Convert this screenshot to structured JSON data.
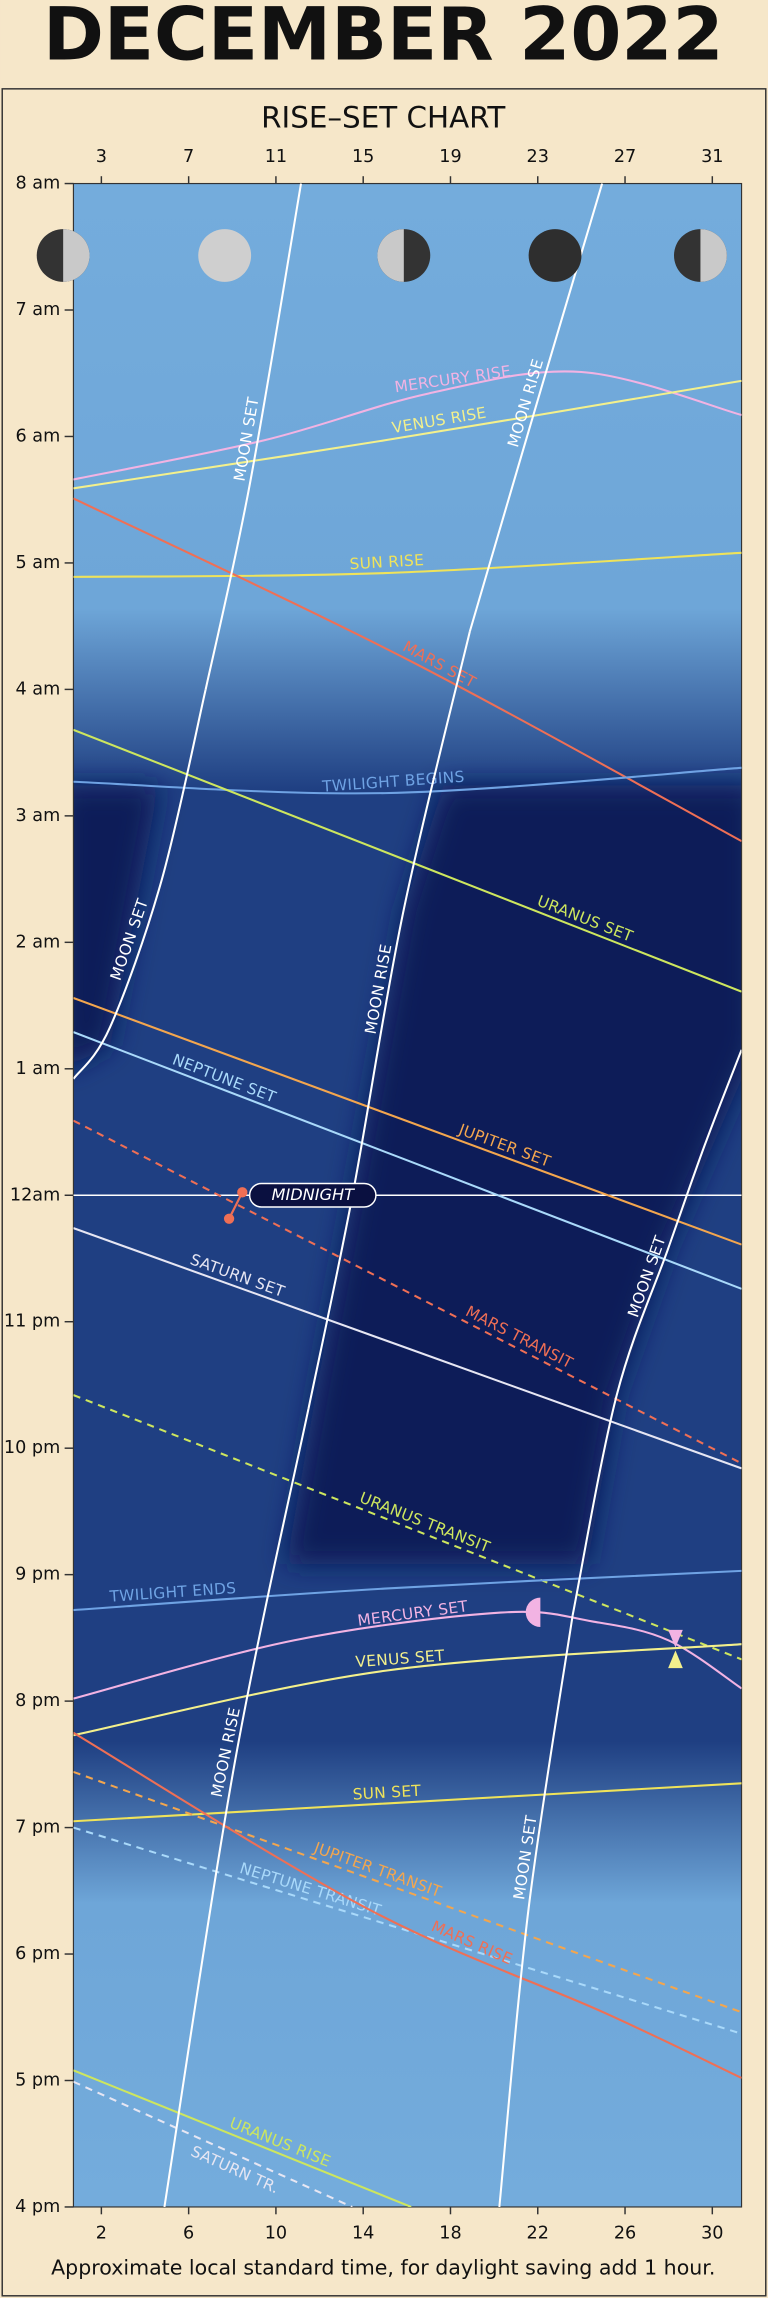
{
  "chart_data": {
    "type": "line",
    "title": "DECEMBER 2022",
    "subtitle": "RISE–SET CHART",
    "note": "Approximate local standard time, for daylight saving add 1 hour.",
    "xlim": [
      0.72,
      31.34
    ],
    "xticks": [
      2,
      6,
      10,
      14,
      18,
      22,
      26,
      30
    ],
    "x2lim": [
      1.72,
      32.34
    ],
    "x2ticks": [
      3,
      7,
      11,
      15,
      19,
      23,
      27,
      31
    ],
    "ylim": [
      16,
      32
    ],
    "yticks": [
      {
        "value": 16,
        "label": "4 pm"
      },
      {
        "value": 17,
        "label": "5 pm"
      },
      {
        "value": 18,
        "label": "6 pm"
      },
      {
        "value": 19,
        "label": "7 pm"
      },
      {
        "value": 20,
        "label": "8 pm"
      },
      {
        "value": 21,
        "label": "9 pm"
      },
      {
        "value": 22,
        "label": "10 pm"
      },
      {
        "value": 23,
        "label": "11 pm"
      },
      {
        "value": 24,
        "label": "12am"
      },
      {
        "value": 25,
        "label": "1 am"
      },
      {
        "value": 26,
        "label": "2 am"
      },
      {
        "value": 27,
        "label": "3 am"
      },
      {
        "value": 28,
        "label": "4 am"
      },
      {
        "value": 29,
        "label": "5 am"
      },
      {
        "value": 30,
        "label": "6 am"
      },
      {
        "value": 31,
        "label": "7 am"
      },
      {
        "value": 32,
        "label": "8 am"
      }
    ],
    "midnight": {
      "value": 24,
      "label": "MIDNIGHT"
    },
    "series": [
      {
        "name": "MERCURY RISE",
        "color": "#f2b3e3",
        "dashed": false,
        "x": [
          0.72,
          9.47,
          17,
          24,
          31.34
        ],
        "values": [
          29.66,
          29.97,
          30.34,
          30.51,
          30.17
        ]
      },
      {
        "name": "VENUS RISE",
        "color": "#f3f08c",
        "dashed": false,
        "x": [
          0.72,
          15,
          31.34
        ],
        "values": [
          29.59,
          29.97,
          30.44
        ]
      },
      {
        "name": "SUN RISE",
        "color": "#efe35a",
        "dashed": false,
        "x": [
          0.72,
          15,
          31.34
        ],
        "values": [
          28.89,
          28.92,
          29.08
        ]
      },
      {
        "name": "MARS SET",
        "color": "#ef6f55",
        "dashed": false,
        "x": [
          0.72,
          16.1,
          31.34
        ],
        "values": [
          29.51,
          28.23,
          26.8
        ]
      },
      {
        "name": "TWILIGHT BEGINS",
        "color": "#6fa3e4",
        "dashed": false,
        "x": [
          0.72,
          15,
          31.34
        ],
        "values": [
          27.27,
          27.18,
          27.38
        ]
      },
      {
        "name": "URANUS SET",
        "color": "#cde65e",
        "dashed": false,
        "x": [
          0.72,
          31.34
        ],
        "values": [
          27.68,
          25.61
        ]
      },
      {
        "name": "NEPTUNE SET",
        "color": "#a9d9fa",
        "dashed": false,
        "x": [
          0.72,
          31.34
        ],
        "values": [
          25.29,
          23.26
        ]
      },
      {
        "name": "JUPITER SET",
        "color": "#f3a64e",
        "dashed": false,
        "x": [
          0.72,
          31.34
        ],
        "values": [
          25.56,
          23.61
        ]
      },
      {
        "name": "SATURN SET",
        "color": "#e6e6f3",
        "dashed": false,
        "x": [
          0.72,
          31.34
        ],
        "values": [
          23.74,
          21.84
        ]
      },
      {
        "name": "MARS TRANSIT",
        "color": "#ef6f55",
        "dashed": true,
        "x": [
          0.72,
          31.34
        ],
        "values": [
          24.59,
          21.88
        ]
      },
      {
        "name": "URANUS TRANSIT",
        "color": "#cde65e",
        "dashed": true,
        "x": [
          0.72,
          31.34
        ],
        "values": [
          22.42,
          20.33
        ]
      },
      {
        "name": "TWILIGHT ENDS",
        "color": "#6fa3e4",
        "dashed": false,
        "x": [
          0.72,
          15,
          31.34
        ],
        "values": [
          20.72,
          20.89,
          21.03
        ]
      },
      {
        "name": "MERCURY SET",
        "color": "#f2b3e3",
        "dashed": false,
        "x": [
          0.72,
          10.82,
          20.3,
          24.5,
          28,
          31.34
        ],
        "values": [
          20.02,
          20.48,
          20.7,
          20.63,
          20.48,
          20.1
        ]
      },
      {
        "name": "VENUS SET",
        "color": "#f3f08c",
        "dashed": false,
        "x": [
          0.72,
          15,
          31.34
        ],
        "values": [
          19.73,
          20.24,
          20.45
        ]
      },
      {
        "name": "SUN SET",
        "color": "#efe35a",
        "dashed": false,
        "x": [
          0.72,
          15,
          31.34
        ],
        "values": [
          19.05,
          19.19,
          19.35
        ]
      },
      {
        "name": "JUPITER TRANSIT",
        "color": "#f3a64e",
        "dashed": true,
        "x": [
          0.72,
          31.34
        ],
        "values": [
          19.44,
          17.54
        ]
      },
      {
        "name": "NEPTUNE TRANSIT",
        "color": "#a9d9fa",
        "dashed": true,
        "x": [
          0.72,
          31.34
        ],
        "values": [
          19.0,
          17.37
        ]
      },
      {
        "name": "MARS RISE",
        "color": "#ef6f55",
        "dashed": false,
        "x": [
          0.72,
          14.18,
          25,
          31.34
        ],
        "values": [
          19.75,
          18.36,
          17.54,
          17.02
        ]
      },
      {
        "name": "URANUS RISE",
        "color": "#cde65e",
        "dashed": false,
        "x": [
          0.72,
          16.2
        ],
        "values": [
          17.08,
          16.0
        ]
      },
      {
        "name": "SATURN TR.",
        "color": "#e6e6f3",
        "dashed": true,
        "x": [
          0.72,
          13.5
        ],
        "values": [
          16.99,
          16.0
        ]
      },
      {
        "name": "MOON SET",
        "color": "#ffffff",
        "dashed": false,
        "x": [
          11.15,
          8.8,
          6.78
        ],
        "values": [
          32,
          29.62,
          28.0
        ]
      },
      {
        "name": "MOON SET",
        "color": "#ffffff",
        "dashed": false,
        "x": [
          6.78,
          4.76,
          2.4,
          0.72
        ],
        "values": [
          28.0,
          26.49,
          25.33,
          24.92
        ]
      },
      {
        "name": "MOON RISE",
        "color": "#ffffff",
        "dashed": false,
        "x": [
          4.89,
          8.12,
          11.49
        ],
        "values": [
          16,
          19.52,
          22.31
        ]
      },
      {
        "name": "MOON RISE",
        "color": "#ffffff",
        "dashed": false,
        "x": [
          11.49,
          13.51,
          15.86,
          18.89
        ],
        "values": [
          22.31,
          24,
          26.26,
          28.46
        ]
      },
      {
        "name": "MOON RISE",
        "color": "#ffffff",
        "dashed": false,
        "x": [
          18.89,
          22.26,
          24.95
        ],
        "values": [
          28.46,
          30.44,
          32
        ]
      },
      {
        "name": "MOON SET",
        "color": "#ffffff",
        "dashed": false,
        "x": [
          20.24,
          21.58,
          23.6
        ],
        "values": [
          16,
          18.36,
          20.68
        ]
      },
      {
        "name": "MOON SET",
        "color": "#ffffff",
        "dashed": false,
        "x": [
          23.6,
          25.62,
          27.98,
          29.66,
          31.34
        ],
        "values": [
          20.68,
          22.42,
          23.58,
          24.4,
          25.15
        ]
      }
    ]
  }
}
